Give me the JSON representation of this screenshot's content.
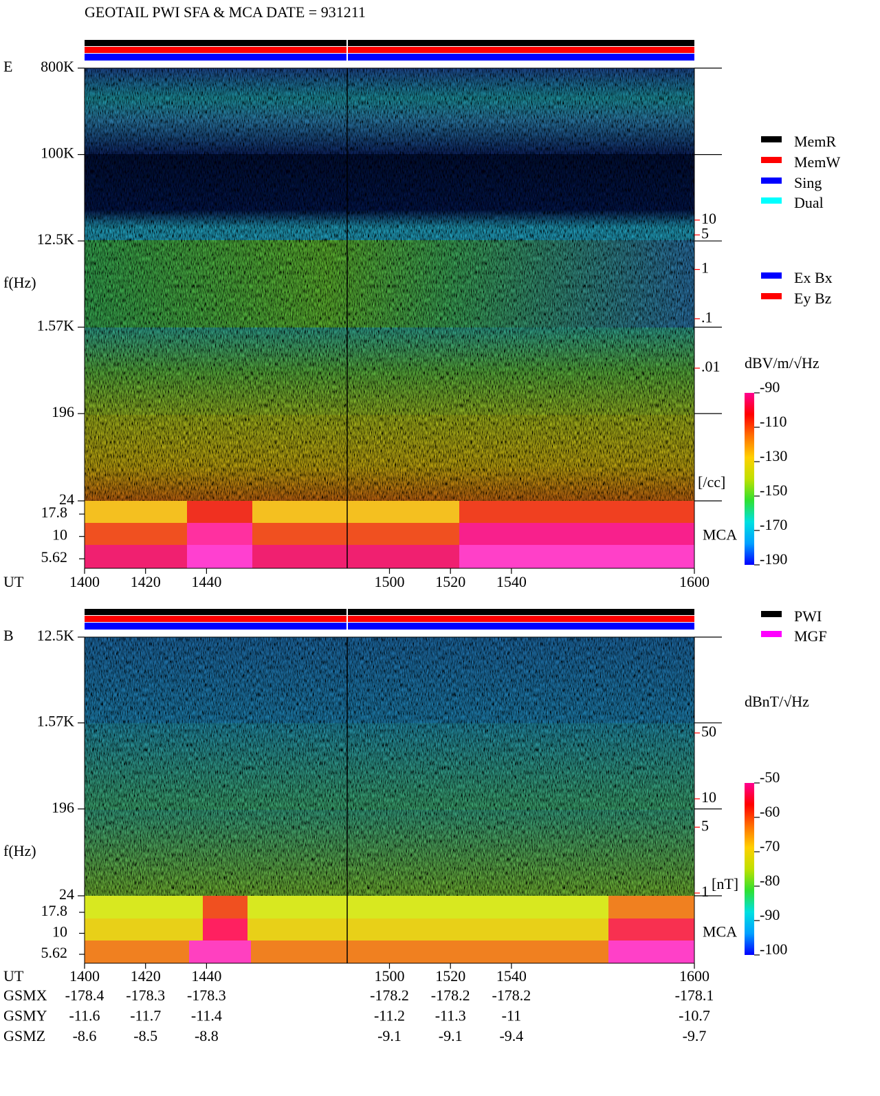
{
  "chart_data": [
    {
      "type": "spectrogram",
      "title": "GEOTAIL  PWI SFA & MCA   DATE = 931211",
      "panel_label": "E",
      "ylabel": "f(Hz)",
      "xlabel": "UT",
      "xlim": [
        1400,
        1600
      ],
      "xticks": [
        1400,
        1420,
        1440,
        1500,
        1520,
        1540,
        1600
      ],
      "log_y": true,
      "ylim": [
        24,
        800000
      ],
      "yticks": [
        {
          "value": 800000,
          "label": "800K"
        },
        {
          "value": 100000,
          "label": "100K"
        },
        {
          "value": 12500,
          "label": "12.5K"
        },
        {
          "value": 1570,
          "label": "1.57K"
        },
        196,
        24
      ],
      "mca_label": "MCA",
      "mca_ylim": [
        4.4,
        25
      ],
      "mca_yticks": [
        17.8,
        10,
        5.62
      ],
      "right_axis": {
        "color": "#ff0000",
        "log": true,
        "ylim": [
          8.8e-07,
          12000
        ],
        "ticks": [
          10,
          5,
          1,
          {
            "value": 0.1,
            "label": ".1"
          },
          {
            "value": 0.01,
            "label": ".01"
          }
        ],
        "unit": "[/cc]"
      },
      "colorbar": {
        "label": "dBV/m/√Hz",
        "lim": [
          -190,
          -90
        ],
        "ticks": [
          -90,
          -110,
          -130,
          -150,
          -170,
          -190
        ],
        "colors": [
          "#0000ff",
          "#00a0ff",
          "#00e0e0",
          "#30e030",
          "#c0e000",
          "#ffd000",
          "#ff7000",
          "#ff0000",
          "#ff0090"
        ]
      },
      "legends": [
        [
          {
            "name": "MemR",
            "color": "#000000"
          },
          {
            "name": "MemW",
            "color": "#ff0000"
          },
          {
            "name": "Sing",
            "color": "#0000ff"
          },
          {
            "name": "Dual",
            "color": "#00ffff"
          }
        ],
        [
          {
            "name": "Ex Bx",
            "color": "#0000ff"
          },
          {
            "name": "Ey Bz",
            "color": "#ff0000"
          }
        ]
      ]
    },
    {
      "type": "spectrogram",
      "panel_label": "B",
      "ylabel": "f(Hz)",
      "xlabel": "UT",
      "xlim": [
        1400,
        1600
      ],
      "xticks": [
        1400,
        1420,
        1440,
        1500,
        1520,
        1540,
        1600
      ],
      "log_y": true,
      "ylim": [
        24,
        12500
      ],
      "yticks": [
        {
          "value": 12500,
          "label": "12.5K"
        },
        {
          "value": 1570,
          "label": "1.57K"
        },
        196,
        24
      ],
      "mca_label": "MCA",
      "mca_ylim": [
        4.4,
        28
      ],
      "mca_yticks": [
        17.8,
        10,
        5.62
      ],
      "right_axis": {
        "color": "#ff0000",
        "log": true,
        "ylim": [
          0.18,
          520
        ],
        "ticks": [
          50,
          10,
          5,
          1
        ],
        "unit": "[nT]"
      },
      "colorbar": {
        "label": "dBnT/√Hz",
        "lim": [
          -100,
          -50
        ],
        "ticks": [
          -50,
          -60,
          -70,
          -80,
          -90,
          -100
        ],
        "colors": [
          "#0000ff",
          "#00a0ff",
          "#00e0e0",
          "#30e030",
          "#c0e000",
          "#ffd000",
          "#ff7000",
          "#ff0000",
          "#ff0090"
        ]
      },
      "legends": [
        [
          {
            "name": "PWI",
            "color": "#000000"
          },
          {
            "name": "MGF",
            "color": "#ff00ff"
          }
        ]
      ],
      "orbit": [
        {
          "label": "GSMX",
          "values": [
            -178.4,
            -178.3,
            -178.3,
            -178.2,
            -178.2,
            -178.2,
            -178.1
          ]
        },
        {
          "label": "GSMY",
          "values": [
            -11.6,
            -11.7,
            -11.4,
            -11.2,
            -11.3,
            -11.0,
            -10.7
          ]
        },
        {
          "label": "GSMZ",
          "values": [
            -8.6,
            -8.5,
            -8.8,
            -9.1,
            -9.1,
            -9.4,
            -9.7
          ]
        }
      ]
    }
  ]
}
